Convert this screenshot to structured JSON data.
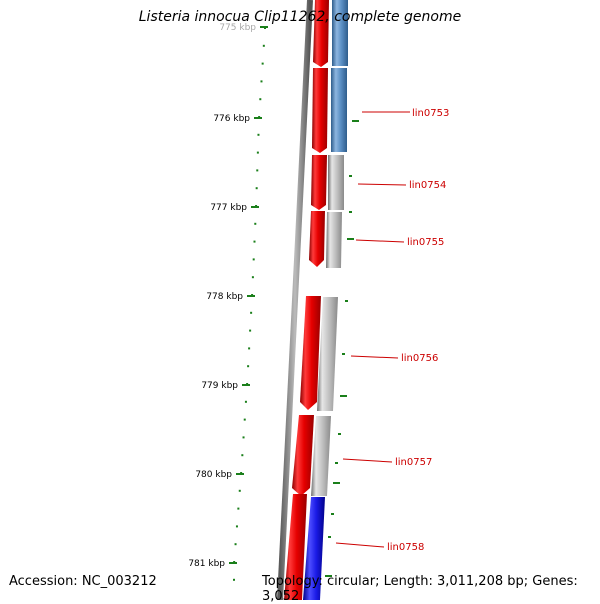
{
  "map": {
    "title": "Listeria innocua Clip11262, complete genome",
    "accession_text": "Accession: NC_003212",
    "topology_text": "Topology: circular; Length: 3,011,208 bp; Genes: 3,052",
    "colors": {
      "backbone": "#777777",
      "tick": "#1a7f1a",
      "cds_forward": "#e60000",
      "cds_generic": "#bdbdbd",
      "cds_highlight_1": "#5b8fc4",
      "cds_highlight_2": "#1b1be6",
      "label": "#cc0000"
    }
  },
  "axis": {
    "tick_labels": [
      "775 kbp",
      "776 kbp",
      "777 kbp",
      "778 kbp",
      "779 kbp",
      "780 kbp",
      "781 kbp"
    ]
  },
  "genes": [
    {
      "label": "lin0753",
      "color_key": "cds_highlight_1"
    },
    {
      "label": "lin0754",
      "color_key": "cds_generic"
    },
    {
      "label": "lin0755",
      "color_key": "cds_generic"
    },
    {
      "label": "lin0756",
      "color_key": "cds_generic"
    },
    {
      "label": "lin0757",
      "color_key": "cds_generic"
    },
    {
      "label": "lin0758",
      "color_key": "cds_highlight_2"
    }
  ]
}
